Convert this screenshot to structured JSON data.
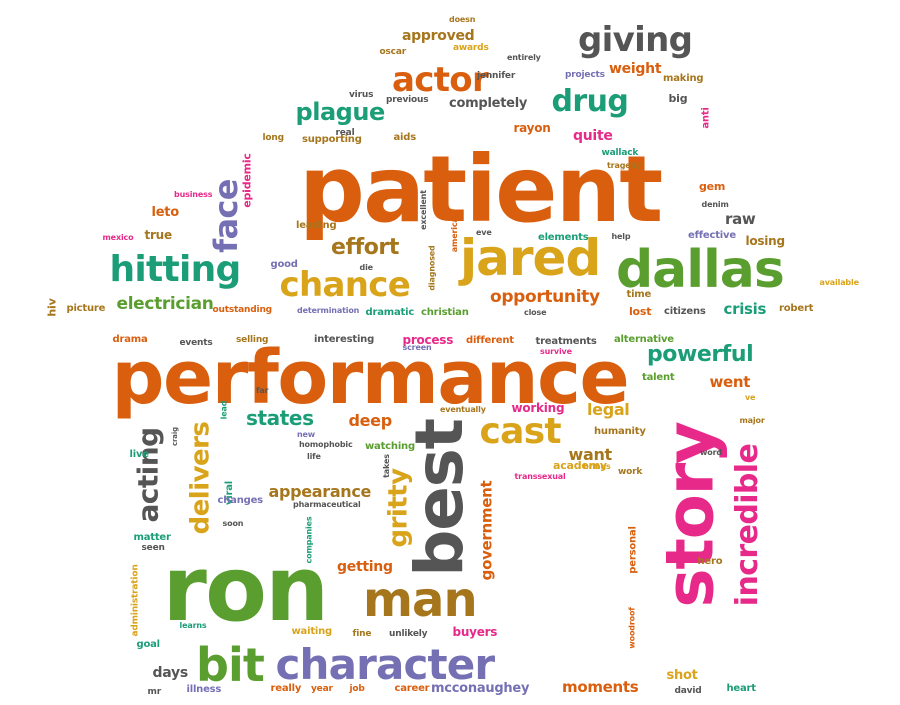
{
  "title": "",
  "palette": {
    "orange": "#D95F0E",
    "green": "#5A9E2F",
    "teal": "#1B9E77",
    "purple": "#7570B3",
    "gold": "#D9A31A",
    "magenta": "#E7298A",
    "grey": "#555555",
    "brown": "#A6761D"
  },
  "words": [
    {
      "text": "patient",
      "color": "#D95F0E"
    },
    {
      "text": "performance",
      "color": "#D95F0E"
    },
    {
      "text": "ron",
      "color": "#5A9E2F"
    },
    {
      "text": "story",
      "color": "#E7298A"
    },
    {
      "text": "best",
      "color": "#555555"
    },
    {
      "text": "dallas",
      "color": "#5A9E2F"
    },
    {
      "text": "jared",
      "color": "#D9A31A"
    },
    {
      "text": "man",
      "color": "#A6761D"
    },
    {
      "text": "character",
      "color": "#7570B3"
    },
    {
      "text": "hitting",
      "color": "#1B9E77"
    },
    {
      "text": "bit",
      "color": "#5A9E2F"
    },
    {
      "text": "chance",
      "color": "#D9A31A"
    },
    {
      "text": "incredible",
      "color": "#E7298A"
    },
    {
      "text": "actor",
      "color": "#D95F0E"
    },
    {
      "text": "drug",
      "color": "#1B9E77"
    },
    {
      "text": "giving",
      "color": "#555555"
    },
    {
      "text": "cast",
      "color": "#D9A31A"
    },
    {
      "text": "face",
      "color": "#7570B3"
    },
    {
      "text": "gritty",
      "color": "#D9A31A"
    },
    {
      "text": "delivers",
      "color": "#D9A31A"
    },
    {
      "text": "acting",
      "color": "#555555"
    },
    {
      "text": "powerful",
      "color": "#1B9E77"
    },
    {
      "text": "plague",
      "color": "#1B9E77"
    },
    {
      "text": "effort",
      "color": "#A6761D"
    },
    {
      "text": "states",
      "color": "#1B9E77"
    },
    {
      "text": "opportunity",
      "color": "#D95F0E"
    },
    {
      "text": "electrician",
      "color": "#5A9E2F"
    },
    {
      "text": "government",
      "color": "#D95F0E"
    },
    {
      "text": "appearance",
      "color": "#A6761D"
    },
    {
      "text": "moments",
      "color": "#D95F0E"
    },
    {
      "text": "mcconaughey",
      "color": "#7570B3"
    },
    {
      "text": "deep",
      "color": "#D95F0E"
    },
    {
      "text": "approved",
      "color": "#A6761D"
    },
    {
      "text": "completely",
      "color": "#555555"
    },
    {
      "text": "weight",
      "color": "#D95F0E"
    },
    {
      "text": "crisis",
      "color": "#1B9E77"
    },
    {
      "text": "legal",
      "color": "#D9A31A"
    },
    {
      "text": "want",
      "color": "#A6761D"
    },
    {
      "text": "went",
      "color": "#D95F0E"
    },
    {
      "text": "getting",
      "color": "#D95F0E"
    },
    {
      "text": "days",
      "color": "#555555"
    },
    {
      "text": "shot",
      "color": "#D9A31A"
    },
    {
      "text": "raw",
      "color": "#555555"
    },
    {
      "text": "quite",
      "color": "#E7298A"
    },
    {
      "text": "rayon",
      "color": "#D95F0E"
    },
    {
      "text": "leto",
      "color": "#D95F0E"
    },
    {
      "text": "academy",
      "color": "#D9A31A"
    },
    {
      "text": "buyers",
      "color": "#E7298A"
    },
    {
      "text": "working",
      "color": "#E7298A"
    },
    {
      "text": "process",
      "color": "#E7298A"
    },
    {
      "text": "lost",
      "color": "#D95F0E"
    },
    {
      "text": "time",
      "color": "#A6761D"
    },
    {
      "text": "viral",
      "color": "#1B9E77"
    },
    {
      "text": "personal",
      "color": "#D95F0E"
    },
    {
      "text": "losing",
      "color": "#A6761D"
    },
    {
      "text": "gem",
      "color": "#D95F0E"
    },
    {
      "text": "true",
      "color": "#A6761D"
    },
    {
      "text": "goal",
      "color": "#1B9E77"
    },
    {
      "text": "matter",
      "color": "#1B9E77"
    },
    {
      "text": "big",
      "color": "#555555"
    },
    {
      "text": "hiv",
      "color": "#A6761D"
    },
    {
      "text": "epidemic",
      "color": "#E7298A"
    },
    {
      "text": "effective",
      "color": "#7570B3"
    },
    {
      "text": "elements",
      "color": "#1B9E77"
    },
    {
      "text": "dramatic",
      "color": "#1B9E77"
    },
    {
      "text": "christian",
      "color": "#5A9E2F"
    },
    {
      "text": "different",
      "color": "#D95F0E"
    },
    {
      "text": "treatments",
      "color": "#555555"
    },
    {
      "text": "alternative",
      "color": "#5A9E2F"
    },
    {
      "text": "selling",
      "color": "#A6761D"
    },
    {
      "text": "interesting",
      "color": "#555555"
    },
    {
      "text": "drama",
      "color": "#D95F0E"
    },
    {
      "text": "events",
      "color": "#555555"
    },
    {
      "text": "changes",
      "color": "#7570B3"
    },
    {
      "text": "watching",
      "color": "#5A9E2F"
    },
    {
      "text": "humanity",
      "color": "#A6761D"
    },
    {
      "text": "work",
      "color": "#A6761D"
    },
    {
      "text": "waiting",
      "color": "#D9A31A"
    },
    {
      "text": "fine",
      "color": "#A6761D"
    },
    {
      "text": "unlikely",
      "color": "#555555"
    },
    {
      "text": "really",
      "color": "#D95F0E"
    },
    {
      "text": "year",
      "color": "#D95F0E"
    },
    {
      "text": "job",
      "color": "#D95F0E"
    },
    {
      "text": "career",
      "color": "#D95F0E"
    },
    {
      "text": "david",
      "color": "#555555"
    },
    {
      "text": "heart",
      "color": "#1B9E77"
    },
    {
      "text": "illness",
      "color": "#7570B3"
    },
    {
      "text": "mr",
      "color": "#555555"
    },
    {
      "text": "live",
      "color": "#1B9E77"
    },
    {
      "text": "seen",
      "color": "#555555"
    },
    {
      "text": "talent",
      "color": "#5A9E2F"
    },
    {
      "text": "robert",
      "color": "#A6761D"
    },
    {
      "text": "citizens",
      "color": "#555555"
    },
    {
      "text": "picture",
      "color": "#A6761D"
    },
    {
      "text": "outstanding",
      "color": "#D95F0E"
    },
    {
      "text": "good",
      "color": "#7570B3"
    },
    {
      "text": "leading",
      "color": "#A6761D"
    },
    {
      "text": "supporting",
      "color": "#A6761D"
    },
    {
      "text": "long",
      "color": "#A6761D"
    },
    {
      "text": "real",
      "color": "#555555"
    },
    {
      "text": "aids",
      "color": "#A6761D"
    },
    {
      "text": "virus",
      "color": "#555555"
    },
    {
      "text": "previous",
      "color": "#555555"
    },
    {
      "text": "oscar",
      "color": "#A6761D"
    },
    {
      "text": "awards",
      "color": "#D9A31A"
    },
    {
      "text": "jennifer",
      "color": "#555555"
    },
    {
      "text": "projects",
      "color": "#7570B3"
    },
    {
      "text": "making",
      "color": "#A6761D"
    },
    {
      "text": "entirely",
      "color": "#555555"
    },
    {
      "text": "doesn",
      "color": "#A6761D"
    },
    {
      "text": "wallack",
      "color": "#1B9E77"
    },
    {
      "text": "tragedy",
      "color": "#A6761D"
    },
    {
      "text": "anti",
      "color": "#E7298A"
    },
    {
      "text": "american",
      "color": "#D95F0E"
    },
    {
      "text": "excellent",
      "color": "#555555"
    },
    {
      "text": "eve",
      "color": "#555555"
    },
    {
      "text": "help",
      "color": "#555555"
    },
    {
      "text": "denim",
      "color": "#555555"
    },
    {
      "text": "business",
      "color": "#E7298A"
    },
    {
      "text": "mexico",
      "color": "#E7298A"
    },
    {
      "text": "die",
      "color": "#555555"
    },
    {
      "text": "diagnosed",
      "color": "#A6761D"
    },
    {
      "text": "determination",
      "color": "#7570B3"
    },
    {
      "text": "close",
      "color": "#555555"
    },
    {
      "text": "available",
      "color": "#D9A31A"
    },
    {
      "text": "screen",
      "color": "#7570B3"
    },
    {
      "text": "survive",
      "color": "#E7298A"
    },
    {
      "text": "far",
      "color": "#555555"
    },
    {
      "text": "ve",
      "color": "#D9A31A"
    },
    {
      "text": "major",
      "color": "#A6761D"
    },
    {
      "text": "lead",
      "color": "#1B9E77"
    },
    {
      "text": "craig",
      "color": "#555555"
    },
    {
      "text": "new",
      "color": "#7570B3"
    },
    {
      "text": "homophobic",
      "color": "#555555"
    },
    {
      "text": "eventually",
      "color": "#A6761D"
    },
    {
      "text": "life",
      "color": "#555555"
    },
    {
      "text": "takes",
      "color": "#555555"
    },
    {
      "text": "transsexual",
      "color": "#E7298A"
    },
    {
      "text": "brings",
      "color": "#D9A31A"
    },
    {
      "text": "word",
      "color": "#555555"
    },
    {
      "text": "pharmaceutical",
      "color": "#555555"
    },
    {
      "text": "companies",
      "color": "#1B9E77"
    },
    {
      "text": "soon",
      "color": "#555555"
    },
    {
      "text": "administration",
      "color": "#D9A31A"
    },
    {
      "text": "learns",
      "color": "#1B9E77"
    },
    {
      "text": "woodroof",
      "color": "#D95F0E"
    },
    {
      "text": "hero",
      "color": "#A6761D"
    }
  ]
}
